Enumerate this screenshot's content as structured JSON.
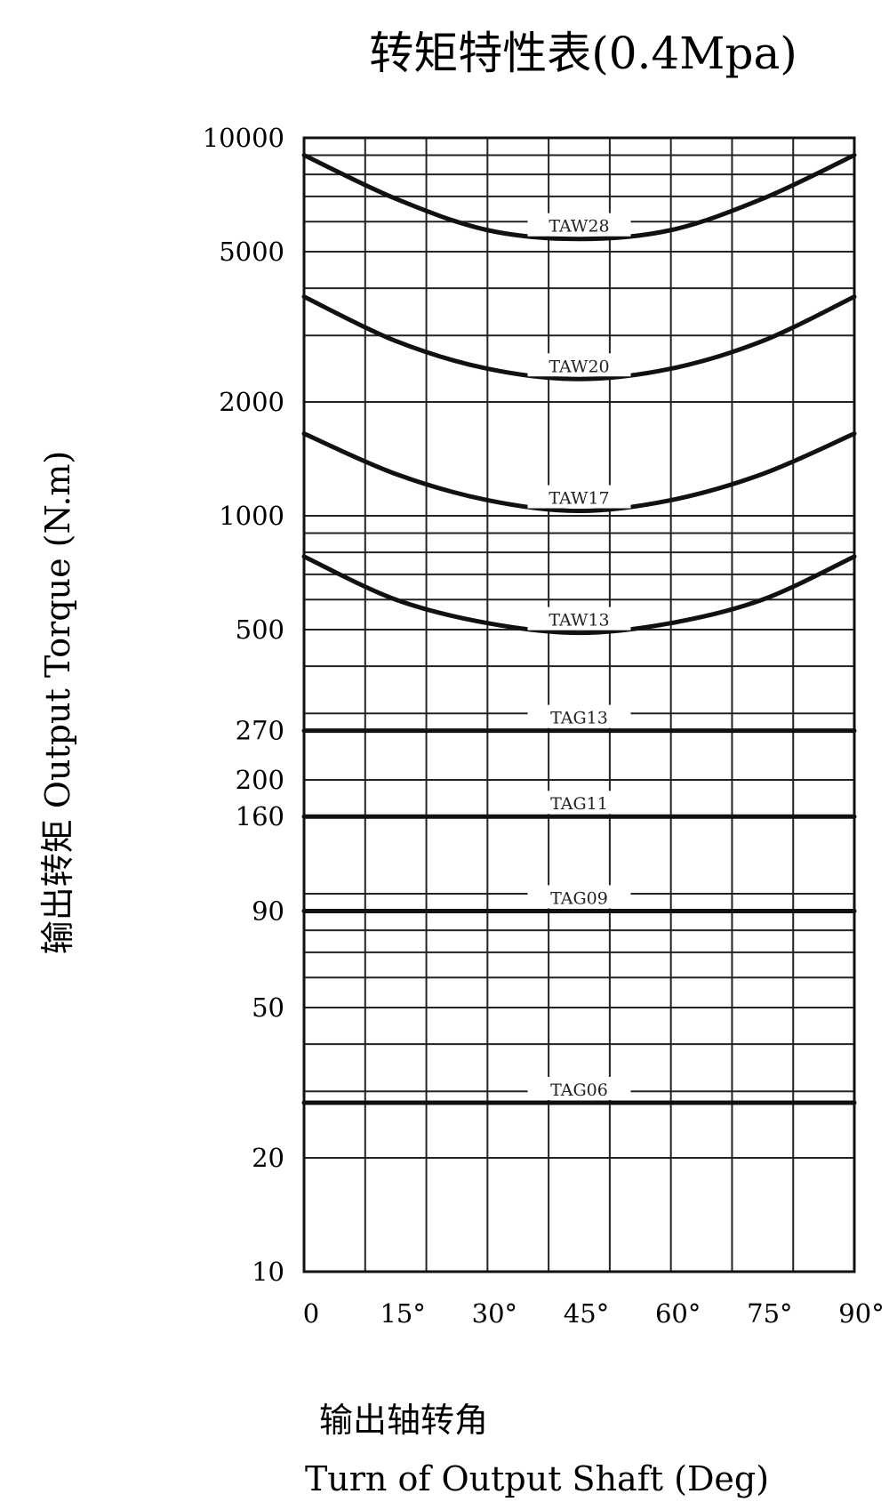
{
  "chart_data": {
    "type": "line",
    "title": "转矩特性表(0.4Mpa)",
    "ylabel": "输出转矩  Output Torque (N.m)",
    "xlabel_cn": "输出轴转角",
    "xlabel_en": "Turn of Output Shaft (Deg)",
    "y_scale": "log",
    "ylim": [
      10,
      10000
    ],
    "xlim": [
      0,
      90
    ],
    "y_ticks": [
      10000,
      5000,
      2000,
      1000,
      500,
      270,
      200,
      160,
      90,
      50,
      20,
      10
    ],
    "x_ticks": [
      {
        "value": 0,
        "label": "0"
      },
      {
        "value": 15,
        "label": "15°"
      },
      {
        "value": 30,
        "label": "30°"
      },
      {
        "value": 45,
        "label": "45°"
      },
      {
        "value": 60,
        "label": "60°"
      },
      {
        "value": 75,
        "label": "75°"
      },
      {
        "value": 90,
        "label": "90°"
      }
    ],
    "grid": true,
    "series": [
      {
        "name": "TAW28",
        "x": [
          0,
          15,
          30,
          45,
          60,
          75,
          90
        ],
        "y": [
          9000,
          6900,
          5700,
          5400,
          5700,
          6900,
          9000
        ]
      },
      {
        "name": "TAW20",
        "x": [
          0,
          15,
          30,
          45,
          60,
          75,
          90
        ],
        "y": [
          3800,
          2900,
          2450,
          2300,
          2450,
          2900,
          3800
        ]
      },
      {
        "name": "TAW17",
        "x": [
          0,
          15,
          30,
          45,
          60,
          75,
          90
        ],
        "y": [
          1650,
          1290,
          1100,
          1030,
          1100,
          1290,
          1650
        ]
      },
      {
        "name": "TAW13",
        "x": [
          0,
          15,
          30,
          45,
          60,
          75,
          90
        ],
        "y": [
          780,
          600,
          520,
          490,
          520,
          600,
          780
        ]
      },
      {
        "name": "TAG13",
        "x": [
          0,
          90
        ],
        "y": [
          270,
          270
        ]
      },
      {
        "name": "TAG11",
        "x": [
          0,
          90
        ],
        "y": [
          160,
          160
        ]
      },
      {
        "name": "TAG09",
        "x": [
          0,
          90
        ],
        "y": [
          90,
          90
        ]
      },
      {
        "name": "TAG06",
        "x": [
          0,
          90
        ],
        "y": [
          28,
          28
        ]
      }
    ]
  }
}
